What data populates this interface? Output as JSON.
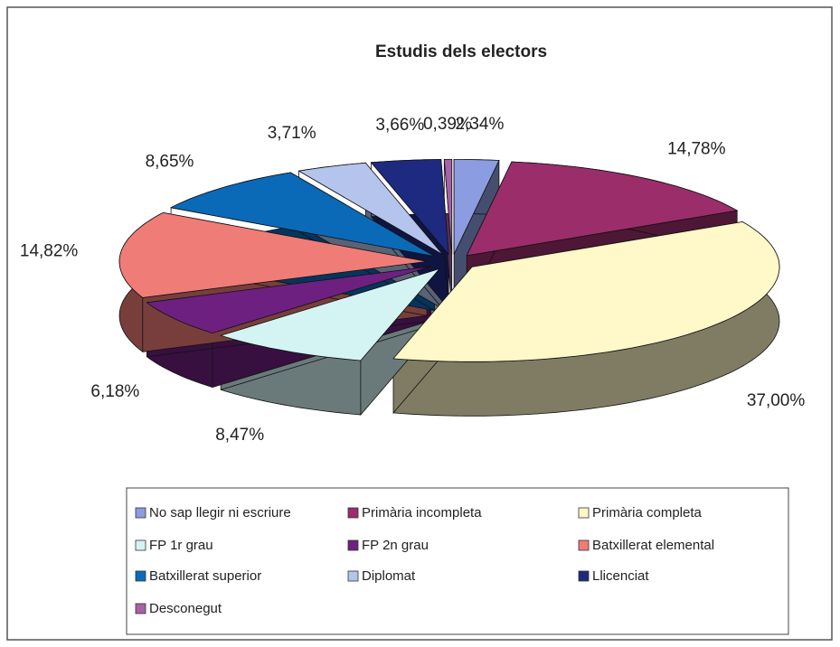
{
  "chart_data": {
    "type": "pie",
    "title": "Estudis dels electors",
    "categories": [
      "No sap llegir ni escriure",
      "Primària incompleta",
      "Primària completa",
      "FP 1r grau",
      "FP 2n grau",
      "Batxillerat elemental",
      "Batxillerat superior",
      "Diplomat",
      "Llicenciat",
      "Desconegut"
    ],
    "values": [
      2.34,
      14.78,
      37.0,
      8.47,
      6.18,
      14.82,
      8.65,
      3.71,
      3.66,
      0.39
    ],
    "value_labels": [
      "2,34%",
      "14,78%",
      "37,00%",
      "8,47%",
      "6,18%",
      "14,82%",
      "8,65%",
      "3,71%",
      "3,66%",
      "0,39%"
    ],
    "colors": [
      "#8c9ce0",
      "#9b2d6b",
      "#fff8c8",
      "#d4f4f4",
      "#6e2080",
      "#f07c78",
      "#0a6ab8",
      "#b4c4ec",
      "#1e2a80",
      "#a860a8"
    ],
    "legend": "bottom"
  }
}
